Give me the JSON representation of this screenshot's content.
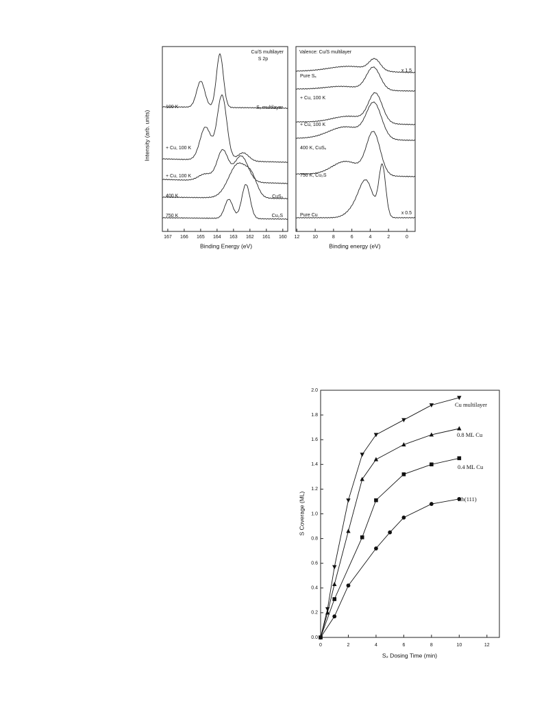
{
  "chart_data": [
    {
      "type": "spectra",
      "title": "Cu/S multilayer",
      "subtitle": "S 2p",
      "xlabel": "Binding Energy (eV)",
      "ylabel": "Intensity (arb. units)",
      "xlim": [
        167.33,
        159.7
      ],
      "xticks": [
        167,
        166,
        165,
        164,
        163,
        162,
        161,
        160
      ],
      "annotations": [
        "100 K",
        "Sₓ multilayer",
        "+ Cu, 100 K",
        "+ Cu, 100 K",
        "400 K",
        "CuSₓ",
        "750 K",
        "Cu₂S"
      ]
    },
    {
      "type": "spectra",
      "title": "Valence: Cu/S multilayer",
      "xlabel": "Binding energy (eV)",
      "xlim": [
        12.1,
        -0.9
      ],
      "xticks": [
        12,
        10,
        8,
        6,
        4,
        2,
        0
      ],
      "annotations": [
        "x 1.5",
        "Pure Sₓ",
        "+ Cu, 100 K",
        "+ Cu, 100 K",
        "400 K, CuSₓ",
        "750 K, Cu₂S",
        "Pure Cu",
        "x 0.5"
      ]
    },
    {
      "type": "line",
      "xlabel": "S₂ Dosing Time (min)",
      "ylabel": "S Coverage (ML)",
      "xlim": [
        0,
        12.9
      ],
      "xticks": [
        0,
        2,
        4,
        6,
        8,
        10,
        12
      ],
      "ylim": [
        0,
        2.0
      ],
      "yticks": [
        {
          "value": 0,
          "label": "0.0"
        },
        0.2,
        0.4,
        0.6,
        0.8,
        {
          "value": 1,
          "label": "1.0"
        },
        1.2,
        1.4,
        1.6,
        1.8,
        {
          "value": 2,
          "label": "2.0"
        }
      ],
      "series": [
        {
          "name": "Cu multilayer",
          "color": "#111111",
          "marker": "triangle-down",
          "x": [
            0,
            0.5,
            1,
            2,
            3,
            4,
            6,
            8,
            10
          ],
          "values": [
            0,
            0.23,
            0.57,
            1.11,
            1.48,
            1.64,
            1.76,
            1.88,
            1.94
          ]
        },
        {
          "name": "0.8 ML Cu",
          "color": "#111111",
          "marker": "triangle-up",
          "x": [
            0,
            0.5,
            1,
            2,
            3,
            4,
            6,
            8,
            10
          ],
          "values": [
            0,
            0.2,
            0.43,
            0.86,
            1.28,
            1.44,
            1.56,
            1.64,
            1.69
          ]
        },
        {
          "name": "0.4 ML Cu",
          "color": "#111111",
          "marker": "square",
          "x": [
            0,
            1,
            3,
            4,
            6,
            8,
            10
          ],
          "values": [
            0,
            0.31,
            0.81,
            1.11,
            1.32,
            1.4,
            1.45
          ]
        },
        {
          "name": "Rh(111)",
          "color": "#111111",
          "marker": "circle",
          "x": [
            0,
            1,
            2,
            4,
            5,
            6,
            8,
            10
          ],
          "values": [
            0,
            0.17,
            0.42,
            0.72,
            0.85,
            0.97,
            1.08,
            1.12
          ]
        }
      ]
    }
  ]
}
